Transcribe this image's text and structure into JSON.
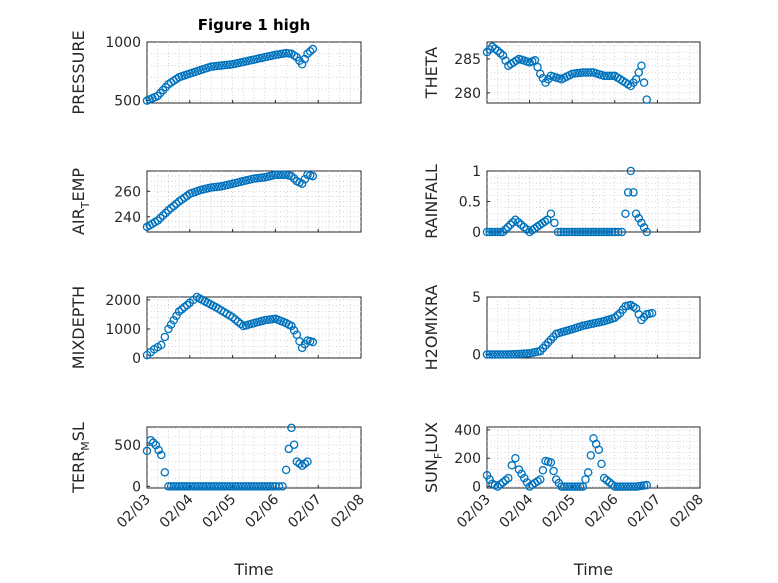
{
  "figure_title": "Figure 1 high",
  "xlabel": "Time",
  "x_ticks": [
    "02/03",
    "02/04",
    "02/05",
    "02/06",
    "02/07",
    "02/08"
  ],
  "marker_color": "#0072BD",
  "chart_data": [
    {
      "type": "scatter",
      "panel": "top-left",
      "ylabel": "PRESSURE",
      "title": "Figure 1 high",
      "yticks": [
        500,
        1000
      ],
      "ylim": [
        480,
        1000
      ],
      "x": [
        "02/03 00:00",
        "02/03 06:00",
        "02/03 12:00",
        "02/03 18:00",
        "02/04 00:00",
        "02/04 06:00",
        "02/04 12:00",
        "02/04 18:00",
        "02/05 00:00",
        "02/05 06:00",
        "02/05 12:00",
        "02/05 18:00",
        "02/06 00:00",
        "02/06 06:00",
        "02/06 09:00",
        "02/06 12:00",
        "02/06 15:00",
        "02/06 18:00",
        "02/06 21:00"
      ],
      "y": [
        500,
        540,
        640,
        700,
        730,
        760,
        790,
        800,
        810,
        830,
        850,
        870,
        890,
        905,
        900,
        870,
        810,
        900,
        940
      ]
    },
    {
      "type": "scatter",
      "panel": "top-right",
      "ylabel": "THETA",
      "yticks": [
        280,
        285
      ],
      "ylim": [
        278.5,
        287.5
      ],
      "x": [
        "02/03 00:00",
        "02/03 03:00",
        "02/03 06:00",
        "02/03 09:00",
        "02/03 12:00",
        "02/03 18:00",
        "02/04 00:00",
        "02/04 03:00",
        "02/04 06:00",
        "02/04 09:00",
        "02/04 12:00",
        "02/04 18:00",
        "02/05 00:00",
        "02/05 06:00",
        "02/05 12:00",
        "02/05 18:00",
        "02/06 00:00",
        "02/06 06:00",
        "02/06 09:00",
        "02/06 12:00",
        "02/06 15:00",
        "02/06 18:00"
      ],
      "y": [
        286,
        286.8,
        286.2,
        285.5,
        284,
        285,
        284.5,
        284.8,
        282.8,
        281.5,
        282.5,
        282,
        282.8,
        283,
        283,
        282.5,
        282.5,
        281.5,
        281,
        282,
        284,
        279
      ]
    },
    {
      "type": "scatter",
      "panel": "row2-left",
      "ylabel": "AIR_TEMP",
      "yticks": [
        240,
        260
      ],
      "ylim": [
        228,
        276
      ],
      "x": [
        "02/03 00:00",
        "02/03 06:00",
        "02/03 12:00",
        "02/03 18:00",
        "02/04 00:00",
        "02/04 06:00",
        "02/04 12:00",
        "02/04 18:00",
        "02/05 00:00",
        "02/05 06:00",
        "02/05 12:00",
        "02/05 18:00",
        "02/06 00:00",
        "02/06 06:00",
        "02/06 09:00",
        "02/06 12:00",
        "02/06 15:00",
        "02/06 18:00",
        "02/06 21:00"
      ],
      "y": [
        232,
        237,
        245,
        252,
        258,
        261,
        263,
        264,
        266,
        268,
        270,
        271,
        273,
        273,
        272,
        268,
        266,
        273,
        272
      ]
    },
    {
      "type": "scatter",
      "panel": "row2-right",
      "ylabel": "RAINFALL",
      "yticks": [
        0,
        0.5,
        1
      ],
      "ylim": [
        0,
        1
      ],
      "x": [
        "02/03 00:00",
        "02/03 09:00",
        "02/03 16:00",
        "02/04 00:00",
        "02/04 10:00",
        "02/04 12:00",
        "02/04 16:00",
        "02/05 00:00",
        "02/05 12:00",
        "02/06 00:00",
        "02/06 04:00",
        "02/06 06:00",
        "02/06 09:00",
        "02/06 12:00",
        "02/06 18:00"
      ],
      "y": [
        0,
        0,
        0.2,
        0,
        0.2,
        0.3,
        0,
        0,
        0,
        0,
        0,
        0.3,
        1,
        0.3,
        0
      ]
    },
    {
      "type": "scatter",
      "panel": "row3-left",
      "ylabel": "MIXDEPTH",
      "yticks": [
        0,
        1000,
        2000
      ],
      "ylim": [
        0,
        2100
      ],
      "x": [
        "02/03 00:00",
        "02/03 04:00",
        "02/03 08:00",
        "02/03 12:00",
        "02/03 18:00",
        "02/04 00:00",
        "02/04 04:00",
        "02/04 10:00",
        "02/04 16:00",
        "02/05 00:00",
        "02/05 06:00",
        "02/05 12:00",
        "02/05 18:00",
        "02/06 00:00",
        "02/06 06:00",
        "02/06 09:00",
        "02/06 12:00",
        "02/06 15:00",
        "02/06 18:00",
        "02/06 21:00"
      ],
      "y": [
        100,
        300,
        450,
        1000,
        1600,
        1900,
        2100,
        1900,
        1700,
        1400,
        1100,
        1200,
        1300,
        1350,
        1200,
        1100,
        800,
        350,
        600,
        550
      ]
    },
    {
      "type": "scatter",
      "panel": "row3-right",
      "ylabel": "H2OMIXRA",
      "yticks": [
        0,
        5
      ],
      "ylim": [
        -0.3,
        5
      ],
      "x": [
        "02/03 00:00",
        "02/03 12:00",
        "02/04 00:00",
        "02/04 06:00",
        "02/04 09:00",
        "02/04 15:00",
        "02/05 00:00",
        "02/05 06:00",
        "02/05 12:00",
        "02/05 18:00",
        "02/06 00:00",
        "02/06 03:00",
        "02/06 06:00",
        "02/06 09:00",
        "02/06 12:00",
        "02/06 15:00",
        "02/06 18:00",
        "02/06 21:00"
      ],
      "y": [
        0,
        0,
        0.1,
        0.3,
        0.8,
        1.8,
        2.2,
        2.5,
        2.7,
        2.9,
        3.2,
        3.6,
        4.2,
        4.3,
        4.0,
        3.0,
        3.5,
        3.6
      ]
    },
    {
      "type": "scatter",
      "panel": "row4-left",
      "ylabel": "TERR_MSL",
      "yticks": [
        0,
        500
      ],
      "ylim": [
        -20,
        720
      ],
      "x": [
        "02/03 00:00",
        "02/03 02:00",
        "02/03 05:00",
        "02/03 08:00",
        "02/03 10:00",
        "02/03 12:00",
        "02/03 18:00",
        "02/04 00:00",
        "02/04 12:00",
        "02/05 00:00",
        "02/05 12:00",
        "02/06 00:00",
        "02/06 04:00",
        "02/06 06:00",
        "02/06 09:00",
        "02/06 12:00",
        "02/06 15:00",
        "02/06 18:00"
      ],
      "y": [
        430,
        560,
        500,
        380,
        170,
        0,
        0,
        0,
        0,
        0,
        0,
        0,
        0,
        200,
        710,
        300,
        250,
        300
      ]
    },
    {
      "type": "scatter",
      "panel": "row4-right",
      "ylabel": "SUN_FLUX",
      "yticks": [
        0,
        200,
        400
      ],
      "ylim": [
        -10,
        420
      ],
      "x": [
        "02/03 00:00",
        "02/03 03:00",
        "02/03 06:00",
        "02/03 12:00",
        "02/03 14:00",
        "02/03 16:00",
        "02/03 18:00",
        "02/04 00:00",
        "02/04 06:00",
        "02/04 09:00",
        "02/04 12:00",
        "02/04 15:00",
        "02/04 18:00",
        "02/05 00:00",
        "02/05 06:00",
        "02/05 09:00",
        "02/05 12:00",
        "02/05 15:00",
        "02/05 18:00",
        "02/06 00:00",
        "02/06 12:00",
        "02/06 18:00"
      ],
      "y": [
        80,
        20,
        0,
        60,
        150,
        200,
        120,
        0,
        50,
        180,
        170,
        50,
        0,
        0,
        0,
        100,
        340,
        260,
        60,
        0,
        0,
        10
      ]
    }
  ]
}
